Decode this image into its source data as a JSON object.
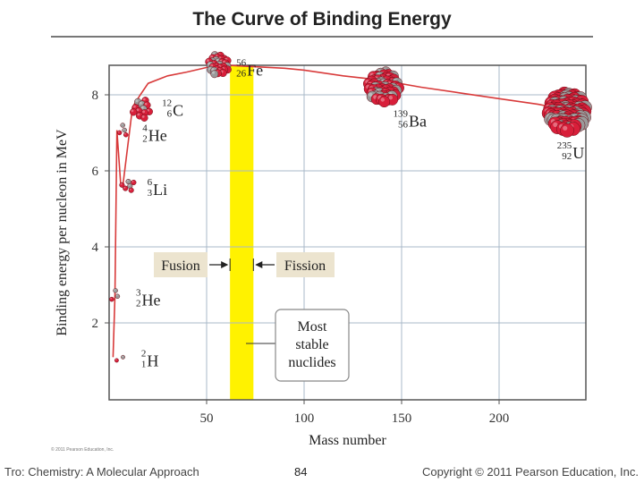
{
  "page": {
    "title": "The Curve of Binding Energy",
    "footer_left": "Tro: Chemistry: A Molecular Approach",
    "footer_page": "84",
    "footer_right": "Copyright © 2011 Pearson Education, Inc.",
    "small_copyright": "© 2011 Pearson Education, Inc."
  },
  "chart_data": {
    "type": "line",
    "title": "The Curve of Binding Energy",
    "xlabel": "Mass number",
    "ylabel": "Binding energy per nucleon in MeV",
    "xlim": [
      0,
      240
    ],
    "ylim": [
      0,
      9
    ],
    "xticks": [
      50,
      100,
      150,
      200
    ],
    "yticks": [
      2,
      4,
      6,
      8
    ],
    "grid": true,
    "series": [
      {
        "name": "binding energy",
        "x": [
          2,
          3,
          4,
          6,
          7,
          12,
          16,
          20,
          30,
          40,
          56,
          70,
          90,
          100,
          120,
          139,
          160,
          180,
          200,
          220,
          235
        ],
        "y": [
          1.1,
          2.7,
          7.07,
          5.6,
          5.6,
          7.68,
          8.0,
          8.3,
          8.5,
          8.6,
          8.79,
          8.75,
          8.7,
          8.65,
          8.5,
          8.39,
          8.2,
          8.05,
          7.9,
          7.75,
          7.6
        ]
      }
    ],
    "nuclides": [
      {
        "mass": "2",
        "atomic": "1",
        "symbol": "H",
        "x": 2,
        "y": 1.1
      },
      {
        "mass": "3",
        "atomic": "2",
        "symbol": "He",
        "x": 3,
        "y": 2.7
      },
      {
        "mass": "4",
        "atomic": "2",
        "symbol": "He",
        "x": 4,
        "y": 7.07
      },
      {
        "mass": "6",
        "atomic": "3",
        "symbol": "Li",
        "x": 6,
        "y": 5.6
      },
      {
        "mass": "12",
        "atomic": "6",
        "symbol": "C",
        "x": 12,
        "y": 7.68
      },
      {
        "mass": "56",
        "atomic": "26",
        "symbol": "Fe",
        "x": 56,
        "y": 8.79
      },
      {
        "mass": "139",
        "atomic": "56",
        "symbol": "Ba",
        "x": 139,
        "y": 8.39
      },
      {
        "mass": "235",
        "atomic": "92",
        "symbol": "U",
        "x": 235,
        "y": 7.6
      }
    ],
    "stable_band": {
      "x_from": 62,
      "x_to": 74,
      "color": "#fff200"
    },
    "annotations": {
      "fusion": "Fusion",
      "fission": "Fission",
      "most_stable": [
        "Most",
        "stable",
        "nuclides"
      ]
    },
    "colors": {
      "curve": "#d83a3a",
      "proton": "#d81f3a",
      "neutron": "#9a9a9a",
      "label_box": "#ece4cf",
      "grid": "#a8b8c8"
    }
  }
}
